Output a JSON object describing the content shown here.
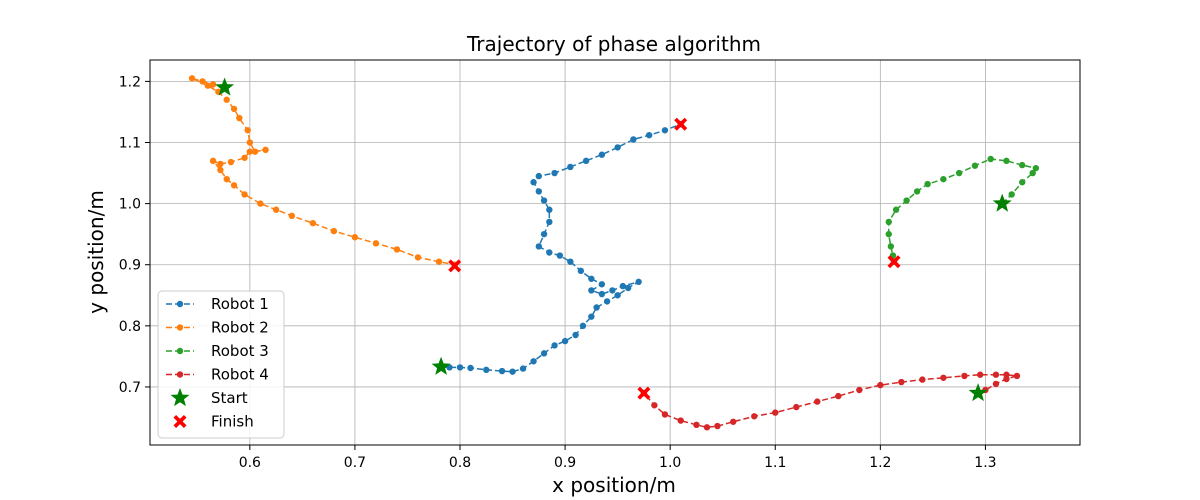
{
  "chart_data": {
    "type": "scatter",
    "title": "Trajectory of phase algorithm",
    "xlabel": "x position/m",
    "ylabel": "y position/m",
    "xlim": [
      0.505,
      1.39
    ],
    "ylim": [
      0.605,
      1.235
    ],
    "xticks": [
      0.6,
      0.7,
      0.8,
      0.9,
      1.0,
      1.1,
      1.2,
      1.3
    ],
    "xtick_labels": [
      "0.6",
      "0.7",
      "0.8",
      "0.9",
      "1.0",
      "1.1",
      "1.2",
      "1.3"
    ],
    "yticks": [
      0.7,
      0.8,
      0.9,
      1.0,
      1.1,
      1.2
    ],
    "ytick_labels": [
      "0.7",
      "0.8",
      "0.9",
      "1.0",
      "1.1",
      "1.2"
    ],
    "grid": true,
    "legend_position": "lower-left",
    "series": [
      {
        "name": "Robot 1",
        "color": "#1f77b4",
        "style": "dashed-dot",
        "points": [
          [
            0.782,
            0.733
          ],
          [
            0.79,
            0.732
          ],
          [
            0.8,
            0.732
          ],
          [
            0.81,
            0.731
          ],
          [
            0.825,
            0.728
          ],
          [
            0.84,
            0.726
          ],
          [
            0.85,
            0.725
          ],
          [
            0.86,
            0.73
          ],
          [
            0.87,
            0.742
          ],
          [
            0.88,
            0.755
          ],
          [
            0.89,
            0.768
          ],
          [
            0.9,
            0.775
          ],
          [
            0.91,
            0.785
          ],
          [
            0.917,
            0.8
          ],
          [
            0.925,
            0.815
          ],
          [
            0.93,
            0.83
          ],
          [
            0.94,
            0.84
          ],
          [
            0.95,
            0.85
          ],
          [
            0.96,
            0.862
          ],
          [
            0.97,
            0.872
          ],
          [
            0.955,
            0.865
          ],
          [
            0.945,
            0.858
          ],
          [
            0.935,
            0.852
          ],
          [
            0.925,
            0.858
          ],
          [
            0.935,
            0.868
          ],
          [
            0.925,
            0.877
          ],
          [
            0.915,
            0.89
          ],
          [
            0.905,
            0.905
          ],
          [
            0.895,
            0.915
          ],
          [
            0.885,
            0.92
          ],
          [
            0.875,
            0.93
          ],
          [
            0.88,
            0.95
          ],
          [
            0.885,
            0.97
          ],
          [
            0.885,
            0.99
          ],
          [
            0.88,
            1.005
          ],
          [
            0.875,
            1.02
          ],
          [
            0.87,
            1.035
          ],
          [
            0.875,
            1.045
          ],
          [
            0.89,
            1.05
          ],
          [
            0.905,
            1.06
          ],
          [
            0.92,
            1.07
          ],
          [
            0.935,
            1.08
          ],
          [
            0.95,
            1.092
          ],
          [
            0.965,
            1.105
          ],
          [
            0.98,
            1.112
          ],
          [
            0.995,
            1.12
          ],
          [
            1.01,
            1.13
          ]
        ]
      },
      {
        "name": "Robot 2",
        "color": "#ff7f0e",
        "style": "dashed-dot",
        "points": [
          [
            0.576,
            1.19
          ],
          [
            0.565,
            1.195
          ],
          [
            0.555,
            1.2
          ],
          [
            0.545,
            1.205
          ],
          [
            0.56,
            1.193
          ],
          [
            0.57,
            1.183
          ],
          [
            0.578,
            1.17
          ],
          [
            0.585,
            1.155
          ],
          [
            0.59,
            1.14
          ],
          [
            0.598,
            1.12
          ],
          [
            0.6,
            1.1
          ],
          [
            0.605,
            1.085
          ],
          [
            0.615,
            1.088
          ],
          [
            0.6,
            1.085
          ],
          [
            0.595,
            1.075
          ],
          [
            0.582,
            1.068
          ],
          [
            0.572,
            1.065
          ],
          [
            0.565,
            1.07
          ],
          [
            0.572,
            1.055
          ],
          [
            0.578,
            1.04
          ],
          [
            0.585,
            1.03
          ],
          [
            0.595,
            1.015
          ],
          [
            0.61,
            1.0
          ],
          [
            0.625,
            0.99
          ],
          [
            0.64,
            0.98
          ],
          [
            0.66,
            0.968
          ],
          [
            0.68,
            0.955
          ],
          [
            0.7,
            0.945
          ],
          [
            0.72,
            0.935
          ],
          [
            0.74,
            0.925
          ],
          [
            0.76,
            0.912
          ],
          [
            0.78,
            0.905
          ],
          [
            0.795,
            0.9
          ]
        ]
      },
      {
        "name": "Robot 3",
        "color": "#2ca02c",
        "style": "dashed-dot",
        "points": [
          [
            1.316,
            1.0
          ],
          [
            1.325,
            1.015
          ],
          [
            1.335,
            1.035
          ],
          [
            1.345,
            1.05
          ],
          [
            1.348,
            1.058
          ],
          [
            1.335,
            1.063
          ],
          [
            1.32,
            1.07
          ],
          [
            1.305,
            1.073
          ],
          [
            1.29,
            1.062
          ],
          [
            1.275,
            1.05
          ],
          [
            1.26,
            1.04
          ],
          [
            1.245,
            1.032
          ],
          [
            1.235,
            1.02
          ],
          [
            1.225,
            1.005
          ],
          [
            1.215,
            0.99
          ],
          [
            1.208,
            0.97
          ],
          [
            1.208,
            0.95
          ],
          [
            1.21,
            0.93
          ],
          [
            1.212,
            0.915
          ],
          [
            1.213,
            0.905
          ]
        ]
      },
      {
        "name": "Robot 4",
        "color": "#d62728",
        "style": "dashed-dot",
        "points": [
          [
            1.293,
            0.69
          ],
          [
            1.3,
            0.695
          ],
          [
            1.31,
            0.705
          ],
          [
            1.32,
            0.713
          ],
          [
            1.33,
            0.718
          ],
          [
            1.32,
            0.72
          ],
          [
            1.31,
            0.72
          ],
          [
            1.295,
            0.72
          ],
          [
            1.28,
            0.718
          ],
          [
            1.26,
            0.715
          ],
          [
            1.24,
            0.712
          ],
          [
            1.22,
            0.708
          ],
          [
            1.2,
            0.703
          ],
          [
            1.18,
            0.695
          ],
          [
            1.16,
            0.685
          ],
          [
            1.14,
            0.676
          ],
          [
            1.12,
            0.667
          ],
          [
            1.1,
            0.658
          ],
          [
            1.08,
            0.652
          ],
          [
            1.06,
            0.643
          ],
          [
            1.045,
            0.636
          ],
          [
            1.035,
            0.634
          ],
          [
            1.025,
            0.638
          ],
          [
            1.01,
            0.645
          ],
          [
            0.995,
            0.655
          ],
          [
            0.985,
            0.67
          ],
          [
            0.975,
            0.69
          ]
        ]
      }
    ],
    "start_points": [
      [
        0.782,
        0.733
      ],
      [
        0.576,
        1.19
      ],
      [
        1.316,
        1.0
      ],
      [
        1.293,
        0.69
      ]
    ],
    "finish_points": [
      [
        1.01,
        1.13
      ],
      [
        0.795,
        0.898
      ],
      [
        1.213,
        0.905
      ],
      [
        0.975,
        0.69
      ]
    ],
    "legend": [
      {
        "label": "Robot 1",
        "color": "#1f77b4",
        "marker": "line-dot"
      },
      {
        "label": "Robot 2",
        "color": "#ff7f0e",
        "marker": "line-dot"
      },
      {
        "label": "Robot 3",
        "color": "#2ca02c",
        "marker": "line-dot"
      },
      {
        "label": "Robot 4",
        "color": "#d62728",
        "marker": "line-dot"
      },
      {
        "label": "Start",
        "color": "#008000",
        "marker": "star"
      },
      {
        "label": "Finish",
        "color": "#ff0000",
        "marker": "x"
      }
    ]
  }
}
